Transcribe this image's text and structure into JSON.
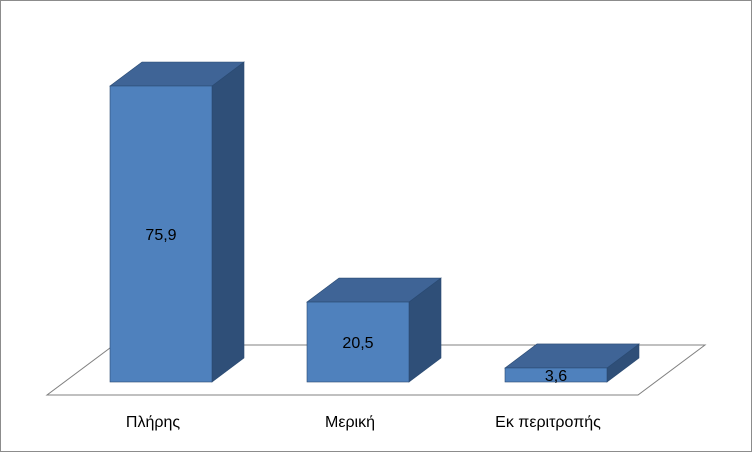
{
  "chart_data": {
    "type": "bar",
    "style": "3d-column",
    "categories": [
      "Πλήρης",
      "Μερική",
      "Εκ περιτροπής"
    ],
    "values": [
      75.9,
      20.5,
      3.6
    ],
    "data_labels": [
      "75,9",
      "20,5",
      "3,6"
    ],
    "title": "",
    "xlabel": "",
    "ylabel": "",
    "ylim": [
      0,
      80
    ],
    "grid": false,
    "legend": "none",
    "colors": {
      "front": "#4f81bd",
      "top": "#3f6496",
      "side": "#2f4f78",
      "edge": "#2a4a72",
      "floor": "#808080"
    }
  }
}
